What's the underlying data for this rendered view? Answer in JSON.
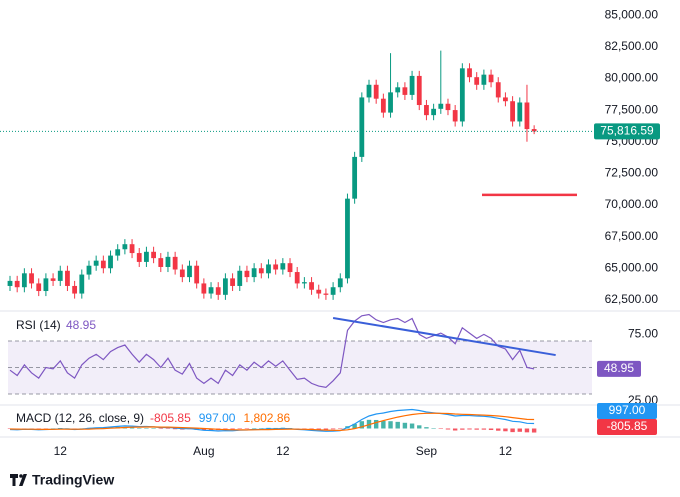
{
  "chart_data": [
    {
      "type": "candlestick",
      "categories": [
        null,
        null,
        null,
        null,
        null,
        null,
        null,
        "12",
        null,
        null,
        null,
        null,
        null,
        null,
        null,
        null,
        null,
        null,
        null,
        null,
        null,
        null,
        null,
        null,
        null,
        null,
        null,
        "Aug",
        null,
        null,
        null,
        null,
        null,
        null,
        null,
        null,
        null,
        null,
        "12",
        null,
        null,
        null,
        null,
        null,
        null,
        null,
        null,
        null,
        null,
        null,
        null,
        null,
        null,
        null,
        null,
        null,
        null,
        null,
        "Sep",
        null,
        null,
        null,
        null,
        null,
        null,
        null,
        null,
        null,
        null,
        "12",
        null,
        null,
        null,
        null
      ],
      "open": [
        63600,
        64000,
        63500,
        64600,
        63800,
        63200,
        64200,
        64000,
        64800,
        63600,
        63000,
        64500,
        65200,
        65600,
        65000,
        66000,
        66500,
        66900,
        66200,
        65500,
        66300,
        65800,
        65100,
        65900,
        64900,
        64300,
        65200,
        63800,
        63000,
        63500,
        62900,
        64200,
        63600,
        64800,
        64300,
        65000,
        64600,
        65300,
        64900,
        65400,
        64700,
        63800,
        63900,
        63300,
        63000,
        62900,
        63500,
        64200,
        70500,
        73800,
        78500,
        79500,
        78400,
        77300,
        78900,
        79300,
        78700,
        80200,
        77900,
        77100,
        77600,
        78000,
        77500,
        76600,
        80800,
        80100,
        79500,
        80300,
        79700,
        78500,
        78200,
        76600,
        78100,
        76000
      ],
      "high": [
        64400,
        64400,
        65000,
        65000,
        64200,
        64600,
        64600,
        65200,
        65200,
        64000,
        64900,
        65600,
        66000,
        66000,
        66400,
        66900,
        67300,
        67300,
        66600,
        66700,
        66700,
        66200,
        66300,
        66300,
        65300,
        65600,
        65600,
        64200,
        63900,
        63900,
        64600,
        64600,
        65200,
        65200,
        65400,
        65400,
        65700,
        65700,
        65800,
        65800,
        65100,
        64300,
        64300,
        63700,
        63400,
        63900,
        64600,
        70900,
        74200,
        78900,
        79900,
        79900,
        78800,
        82000,
        79700,
        79700,
        80600,
        80600,
        78300,
        78000,
        82200,
        78400,
        77900,
        81200,
        81200,
        80500,
        80700,
        80700,
        80100,
        78900,
        78600,
        78500,
        79500,
        76300
      ],
      "low": [
        63200,
        63100,
        63100,
        63400,
        62800,
        62800,
        63600,
        63600,
        63200,
        62600,
        62600,
        64100,
        64800,
        64600,
        64600,
        65600,
        66100,
        65800,
        65100,
        65100,
        65400,
        64700,
        64700,
        64500,
        63900,
        63900,
        63400,
        62600,
        62600,
        62500,
        62500,
        63200,
        63200,
        63900,
        63900,
        64200,
        64200,
        64500,
        64500,
        64300,
        63400,
        63400,
        62900,
        62600,
        62500,
        62500,
        63100,
        63800,
        70100,
        73400,
        78100,
        78000,
        76900,
        76900,
        78500,
        78300,
        78300,
        77500,
        76700,
        76700,
        77200,
        77100,
        76200,
        76200,
        79700,
        79100,
        79100,
        79300,
        78100,
        77800,
        76200,
        76200,
        75000,
        75600
      ],
      "close": [
        64000,
        63500,
        64600,
        63800,
        63200,
        64200,
        64000,
        64800,
        63600,
        63000,
        64500,
        65200,
        65600,
        65000,
        66000,
        66500,
        66900,
        66200,
        65500,
        66300,
        65800,
        65100,
        65900,
        64900,
        64300,
        65200,
        63800,
        63000,
        63500,
        62900,
        64200,
        63600,
        64800,
        64300,
        65000,
        64600,
        65300,
        64900,
        65400,
        64700,
        63800,
        63900,
        63300,
        63000,
        62900,
        63500,
        64200,
        70500,
        73800,
        78500,
        79500,
        78400,
        77300,
        78900,
        79300,
        78700,
        80200,
        77900,
        77100,
        77600,
        78000,
        77500,
        76600,
        80800,
        80100,
        79500,
        80300,
        79700,
        78500,
        78200,
        76600,
        78100,
        76000,
        75816.59
      ],
      "up_color": "#089981",
      "down_color": "#f23645",
      "ylim": [
        61700,
        86200
      ],
      "yticks": [
        {
          "value": 62500,
          "label": "62,500.00"
        },
        {
          "value": 65000,
          "label": "65,000.00"
        },
        {
          "value": 67500,
          "label": "67,500.00"
        },
        {
          "value": 70000,
          "label": "70,000.00"
        },
        {
          "value": 72500,
          "label": "72,500.00"
        },
        {
          "value": 75000,
          "label": "75,000.00"
        },
        {
          "value": 77500,
          "label": "77,500.00"
        },
        {
          "value": 80000,
          "label": "80,000.00"
        },
        {
          "value": 82500,
          "label": "82,500.00"
        },
        {
          "value": 85000,
          "label": "85,000.00"
        }
      ],
      "last_price": {
        "value": 75816.59,
        "label": "75,816.59"
      },
      "hline": {
        "value": 70800,
        "color": "#f23645"
      }
    },
    {
      "type": "line",
      "title": "RSI (14)",
      "color": "#7e57c2",
      "values": [
        48,
        44,
        52,
        46,
        42,
        50,
        49,
        55,
        46,
        42,
        52,
        57,
        60,
        56,
        62,
        65,
        67,
        60,
        54,
        60,
        56,
        50,
        57,
        48,
        45,
        53,
        42,
        38,
        42,
        38,
        48,
        44,
        52,
        48,
        54,
        50,
        55,
        51,
        55,
        48,
        41,
        42,
        38,
        36,
        35,
        40,
        46,
        78,
        85,
        89,
        90,
        86,
        84,
        86,
        87,
        84,
        87,
        75,
        72,
        74,
        76,
        73,
        68,
        80,
        76,
        72,
        75,
        72,
        66,
        64,
        56,
        63,
        50,
        48.95
      ],
      "ylim": [
        21.7,
        91.9
      ],
      "yticks": [
        {
          "value": 75,
          "label": "75.00"
        },
        {
          "value": 25,
          "label": "25.00"
        }
      ],
      "levels": [
        70,
        50,
        30
      ],
      "trendline": {
        "x": [
          45,
          76
        ],
        "values": [
          87.4,
          59.4
        ],
        "color": "#3a5fd9"
      }
    },
    {
      "type": "macd",
      "title": "MACD (12, 26, close, 9)",
      "ylim": [
        -1500,
        4500
      ],
      "series": [
        {
          "name": "Histogram",
          "color": "#f23645",
          "up_color": "#26a69a",
          "values": [
            -100,
            -120,
            -16,
            -37,
            -94,
            -27,
            18,
            95,
            36,
            -51,
            23,
            130,
            208,
            190,
            248,
            294,
            315,
            220,
            96,
            93,
            18,
            -90,
            -56,
            -141,
            -217,
            -150,
            -264,
            -347,
            -318,
            -334,
            -203,
            -187,
            -53,
            -18,
            66,
            69,
            127,
            110,
            152,
            90,
            -40,
            -96,
            -173,
            -218,
            -238,
            -166,
            -53,
            462,
            930,
            1464,
            1731,
            1705,
            1524,
            1459,
            1327,
            1142,
            994,
            635,
            268,
            94,
            -45,
            -200,
            -400,
            -240,
            -192,
            -234,
            -227,
            -302,
            -442,
            -554,
            -723,
            -658,
            -766,
            -805.85
          ]
        },
        {
          "name": "MACD",
          "color": "#2196f3",
          "last_label": "997.00",
          "values": [
            -200,
            -250,
            -150,
            -180,
            -260,
            -200,
            -150,
            -50,
            -100,
            -200,
            -120,
            20,
            150,
            180,
            300,
            420,
            520,
            480,
            380,
            400,
            330,
            200,
            220,
            100,
            -30,
            0,
            -180,
            -350,
            -400,
            -500,
            -420,
            -450,
            -330,
            -300,
            -200,
            -180,
            -90,
            -80,
            0,
            -40,
            -180,
            -260,
            -380,
            -480,
            -560,
            -530,
            -430,
            200,
            900,
            1800,
            2500,
            2900,
            3100,
            3400,
            3600,
            3700,
            3800,
            3600,
            3300,
            3150,
            3000,
            2800,
            2500,
            2600,
            2600,
            2500,
            2450,
            2300,
            2050,
            1800,
            1450,
            1350,
            1050,
            997
          ]
        },
        {
          "name": "Signal",
          "color": "#ff6d00",
          "last_label": "1,802.86",
          "values": [
            -100,
            -130,
            -134,
            -143,
            -166,
            -173,
            -168,
            -145,
            -136,
            -149,
            -143,
            -110,
            -58,
            -10,
            52,
            126,
            205,
            260,
            284,
            307,
            312,
            290,
            276,
            241,
            187,
            150,
            84,
            -3,
            -82,
            -166,
            -217,
            -263,
            -277,
            -282,
            -266,
            -249,
            -217,
            -190,
            -152,
            -130,
            -140,
            -164,
            -207,
            -262,
            -322,
            -364,
            -377,
            -262,
            -30,
            336,
            769,
            1195,
            1576,
            1941,
            2273,
            2558,
            2806,
            2965,
            3032,
            3056,
            3045,
            3000,
            2900,
            2840,
            2792,
            2734,
            2677,
            2602,
            2492,
            2354,
            2173,
            2008,
            1816,
            1802.86
          ]
        }
      ]
    }
  ],
  "brand": "TradingView"
}
